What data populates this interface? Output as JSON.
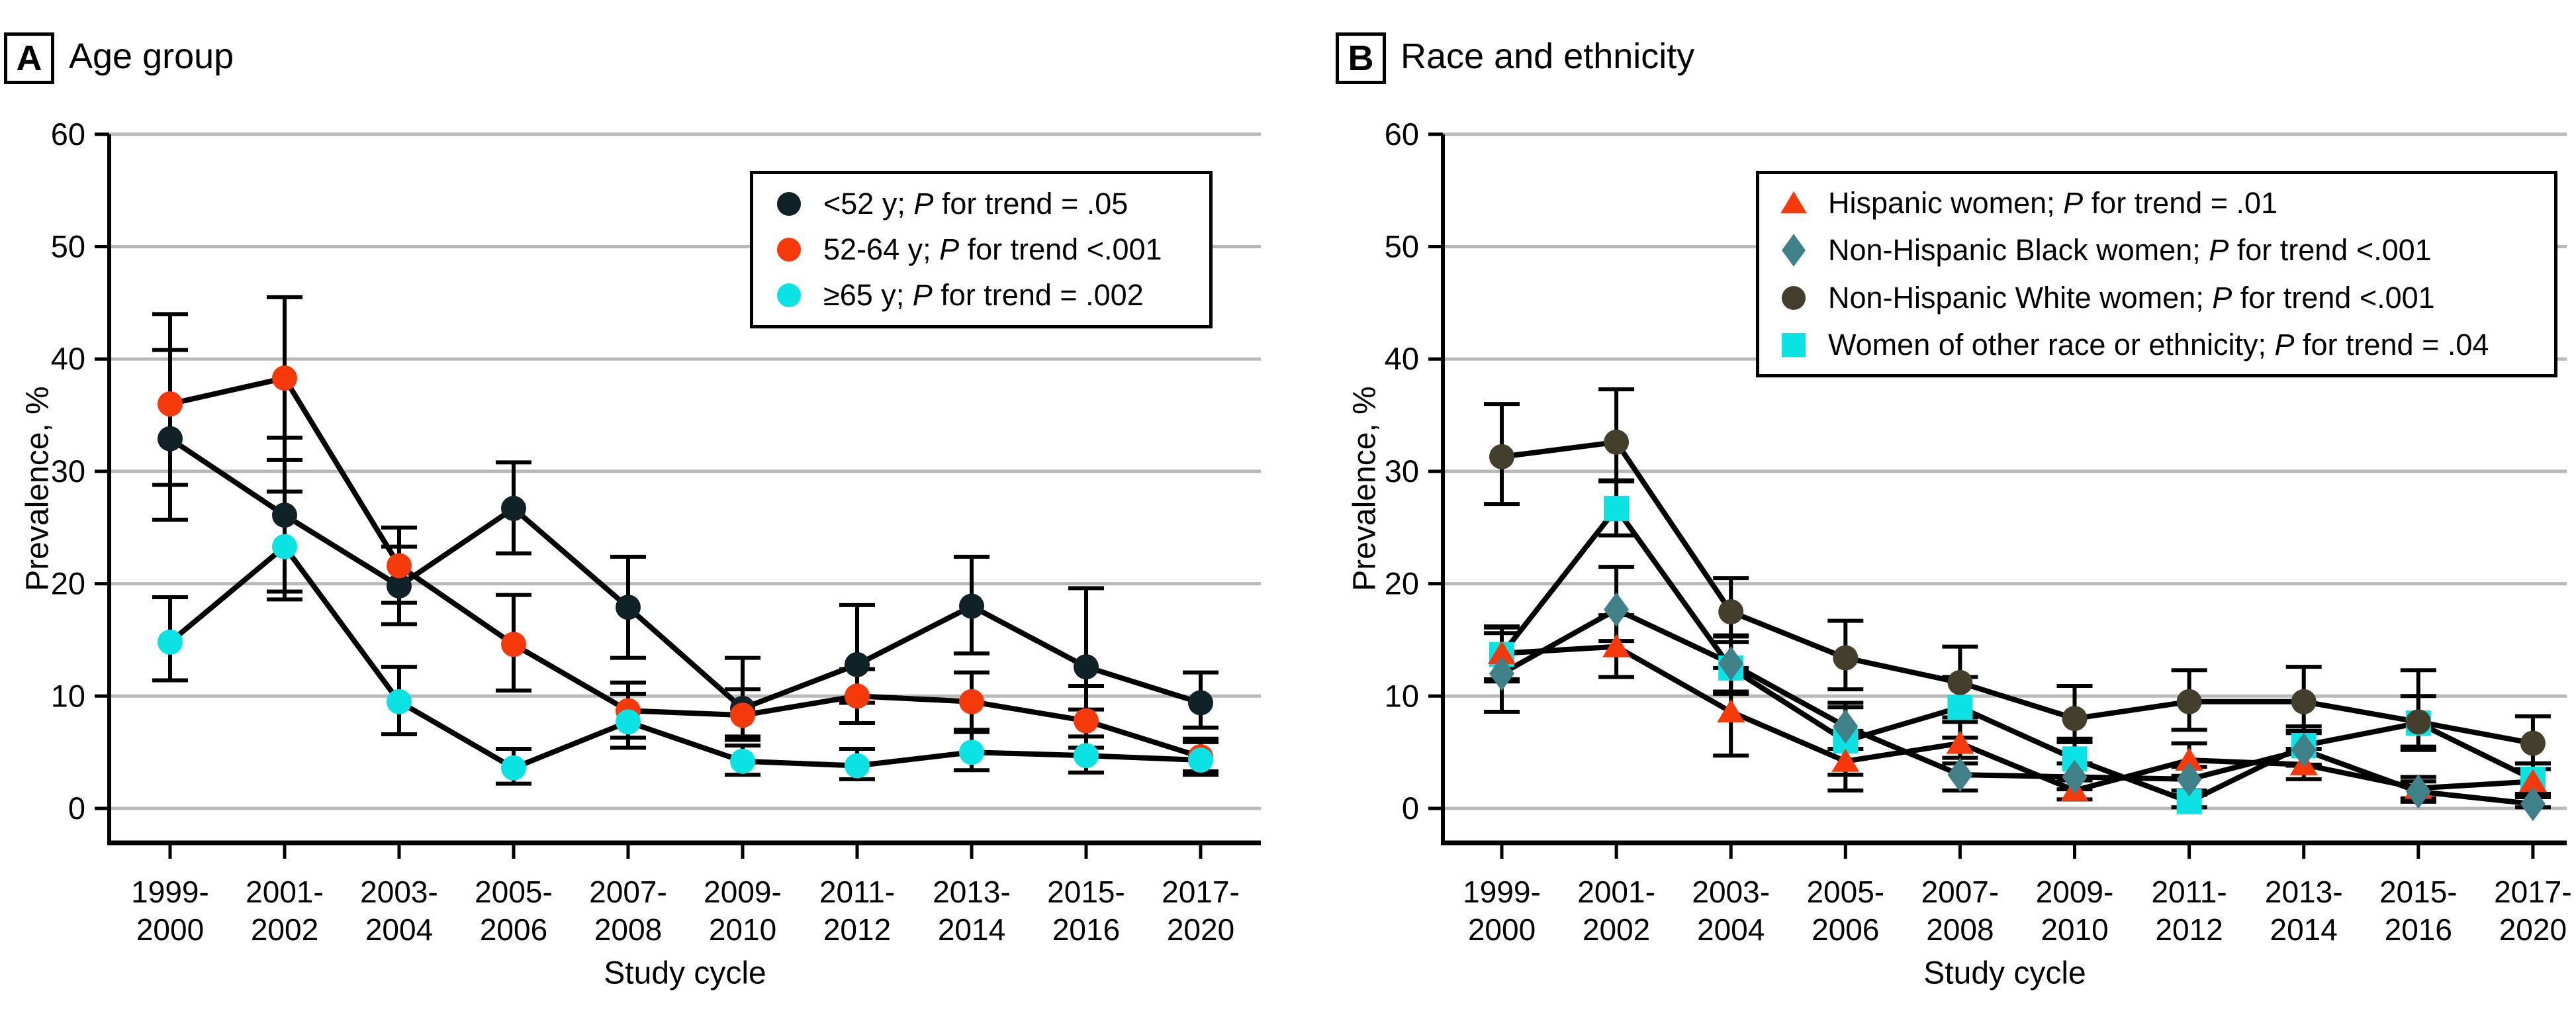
{
  "figure": {
    "panels": [
      {
        "label": "A",
        "title": "Age group"
      },
      {
        "label": "B",
        "title": "Race and ethnicity"
      }
    ],
    "grid_color": "#b9b9b9",
    "axis_color": "#000000"
  },
  "chart_data": [
    {
      "type": "line",
      "panel_label": "A",
      "title": "Age group",
      "xlabel": "Study cycle",
      "ylabel": "Prevalence, %",
      "ylim": [
        0,
        60
      ],
      "yticks": [
        0,
        10,
        20,
        30,
        40,
        50,
        60
      ],
      "grid": "horizontal-gridlines-on",
      "legend_position": "top-right-inside",
      "categories": [
        "1999-2000",
        "2001-2002",
        "2003-2004",
        "2005-2006",
        "2007-2008",
        "2009-2010",
        "2011-2012",
        "2013-2014",
        "2015-2016",
        "2017-2020"
      ],
      "category_lines": [
        [
          "1999-",
          "2000"
        ],
        [
          "2001-",
          "2002"
        ],
        [
          "2003-",
          "2004"
        ],
        [
          "2005-",
          "2006"
        ],
        [
          "2007-",
          "2008"
        ],
        [
          "2009-",
          "2010"
        ],
        [
          "2011-",
          "2012"
        ],
        [
          "2013-",
          "2014"
        ],
        [
          "2015-",
          "2016"
        ],
        [
          "2017-",
          "2020"
        ]
      ],
      "series": [
        {
          "name": "<52 y",
          "p_for_trend": "= .05",
          "marker": "circle",
          "color": "#102228",
          "values": [
            32.9,
            26.1,
            19.8,
            26.7,
            17.9,
            8.9,
            12.8,
            18.0,
            12.6,
            9.4
          ],
          "ci_low": [
            25.7,
            19.3,
            16.4,
            22.7,
            13.4,
            6.4,
            9.4,
            13.8,
            8.8,
            7.2
          ],
          "ci_high": [
            40.8,
            33.0,
            23.3,
            30.8,
            22.4,
            13.4,
            18.1,
            22.4,
            19.6,
            12.1
          ]
        },
        {
          "name": "52-64 y",
          "p_for_trend": "<.001",
          "marker": "circle",
          "color": "#f5390b",
          "values": [
            36.0,
            38.3,
            21.6,
            14.6,
            8.7,
            8.3,
            10.0,
            9.5,
            7.8,
            4.6
          ],
          "ci_low": [
            28.8,
            31.0,
            18.3,
            10.5,
            6.3,
            6.1,
            7.6,
            7.0,
            5.4,
            3.3
          ],
          "ci_high": [
            44.0,
            45.5,
            25.0,
            19.0,
            11.2,
            10.6,
            12.4,
            12.1,
            10.9,
            6.2
          ]
        },
        {
          "name": "≥65 y",
          "p_for_trend": "= .002",
          "marker": "circle",
          "color": "#0be2e4",
          "values": [
            14.8,
            23.3,
            9.5,
            3.6,
            7.7,
            4.2,
            3.8,
            5.0,
            4.7,
            4.3
          ],
          "ci_low": [
            11.4,
            18.6,
            6.6,
            2.2,
            5.4,
            3.0,
            2.6,
            3.4,
            3.2,
            3.0
          ],
          "ci_high": [
            18.8,
            28.2,
            12.6,
            5.3,
            10.2,
            5.6,
            5.3,
            6.8,
            6.4,
            5.9
          ]
        }
      ]
    },
    {
      "type": "line",
      "panel_label": "B",
      "title": "Race and ethnicity",
      "xlabel": "Study cycle",
      "ylabel": "Prevalence, %",
      "ylim": [
        0,
        60
      ],
      "yticks": [
        0,
        10,
        20,
        30,
        40,
        50,
        60
      ],
      "grid": "horizontal-gridlines-on",
      "legend_position": "top-right-inside",
      "categories": [
        "1999-2000",
        "2001-2002",
        "2003-2004",
        "2005-2006",
        "2007-2008",
        "2009-2010",
        "2011-2012",
        "2013-2014",
        "2015-2016",
        "2017-2020"
      ],
      "category_lines": [
        [
          "1999-",
          "2000"
        ],
        [
          "2001-",
          "2002"
        ],
        [
          "2003-",
          "2004"
        ],
        [
          "2005-",
          "2006"
        ],
        [
          "2007-",
          "2008"
        ],
        [
          "2009-",
          "2010"
        ],
        [
          "2011-",
          "2012"
        ],
        [
          "2013-",
          "2014"
        ],
        [
          "2015-",
          "2016"
        ],
        [
          "2017-",
          "2020"
        ]
      ],
      "series": [
        {
          "name": "Women of other race or ethnicity",
          "p_for_trend": "= .04",
          "marker": "square",
          "color": "#0be2e4",
          "values": [
            13.7,
            26.7,
            12.5,
            6.0,
            9.0,
            4.4,
            0.6,
            5.6,
            7.6,
            2.6
          ],
          "ci_low": [
            11.3,
            24.3,
            10.2,
            3.0,
            6.3,
            2.6,
            0.1,
            3.9,
            5.2,
            1.2
          ],
          "ci_high": [
            16.1,
            29.2,
            14.8,
            9.0,
            11.7,
            6.2,
            1.2,
            7.3,
            10.0,
            4.0
          ]
        },
        {
          "name": "Hispanic women",
          "p_for_trend": "= .01",
          "marker": "triangle",
          "color": "#f5390b",
          "values": [
            13.8,
            14.4,
            8.6,
            4.2,
            5.8,
            1.6,
            4.3,
            3.9,
            1.8,
            2.4
          ],
          "ci_low": [
            11.5,
            11.7,
            4.7,
            1.6,
            4.0,
            0.8,
            2.9,
            2.6,
            0.9,
            1.3
          ],
          "ci_high": [
            16.2,
            17.2,
            12.5,
            6.9,
            7.7,
            2.5,
            5.8,
            5.3,
            2.8,
            3.5
          ]
        },
        {
          "name": "Non-Hispanic Black women",
          "p_for_trend": "<.001",
          "marker": "diamond",
          "color": "#3f8089",
          "values": [
            12.0,
            17.7,
            12.9,
            7.3,
            3.0,
            2.8,
            2.6,
            5.2,
            1.5,
            0.4
          ],
          "ci_low": [
            8.6,
            14.9,
            10.4,
            5.3,
            1.6,
            1.7,
            1.6,
            3.8,
            0.6,
            0.1
          ],
          "ci_high": [
            15.6,
            21.5,
            15.3,
            9.4,
            4.5,
            4.0,
            3.7,
            6.7,
            2.4,
            1.0
          ]
        },
        {
          "name": "Non-Hispanic White women",
          "p_for_trend": "<.001",
          "marker": "circle",
          "color": "#433f2c",
          "values": [
            31.3,
            32.6,
            17.5,
            13.4,
            11.2,
            8.0,
            9.5,
            9.5,
            7.7,
            5.8
          ],
          "ci_low": [
            27.1,
            29.1,
            15.4,
            10.6,
            8.1,
            5.9,
            7.0,
            6.9,
            5.5,
            4.0
          ],
          "ci_high": [
            36.0,
            37.3,
            20.5,
            16.7,
            14.4,
            10.9,
            12.3,
            12.6,
            12.3,
            8.2
          ]
        }
      ]
    }
  ]
}
